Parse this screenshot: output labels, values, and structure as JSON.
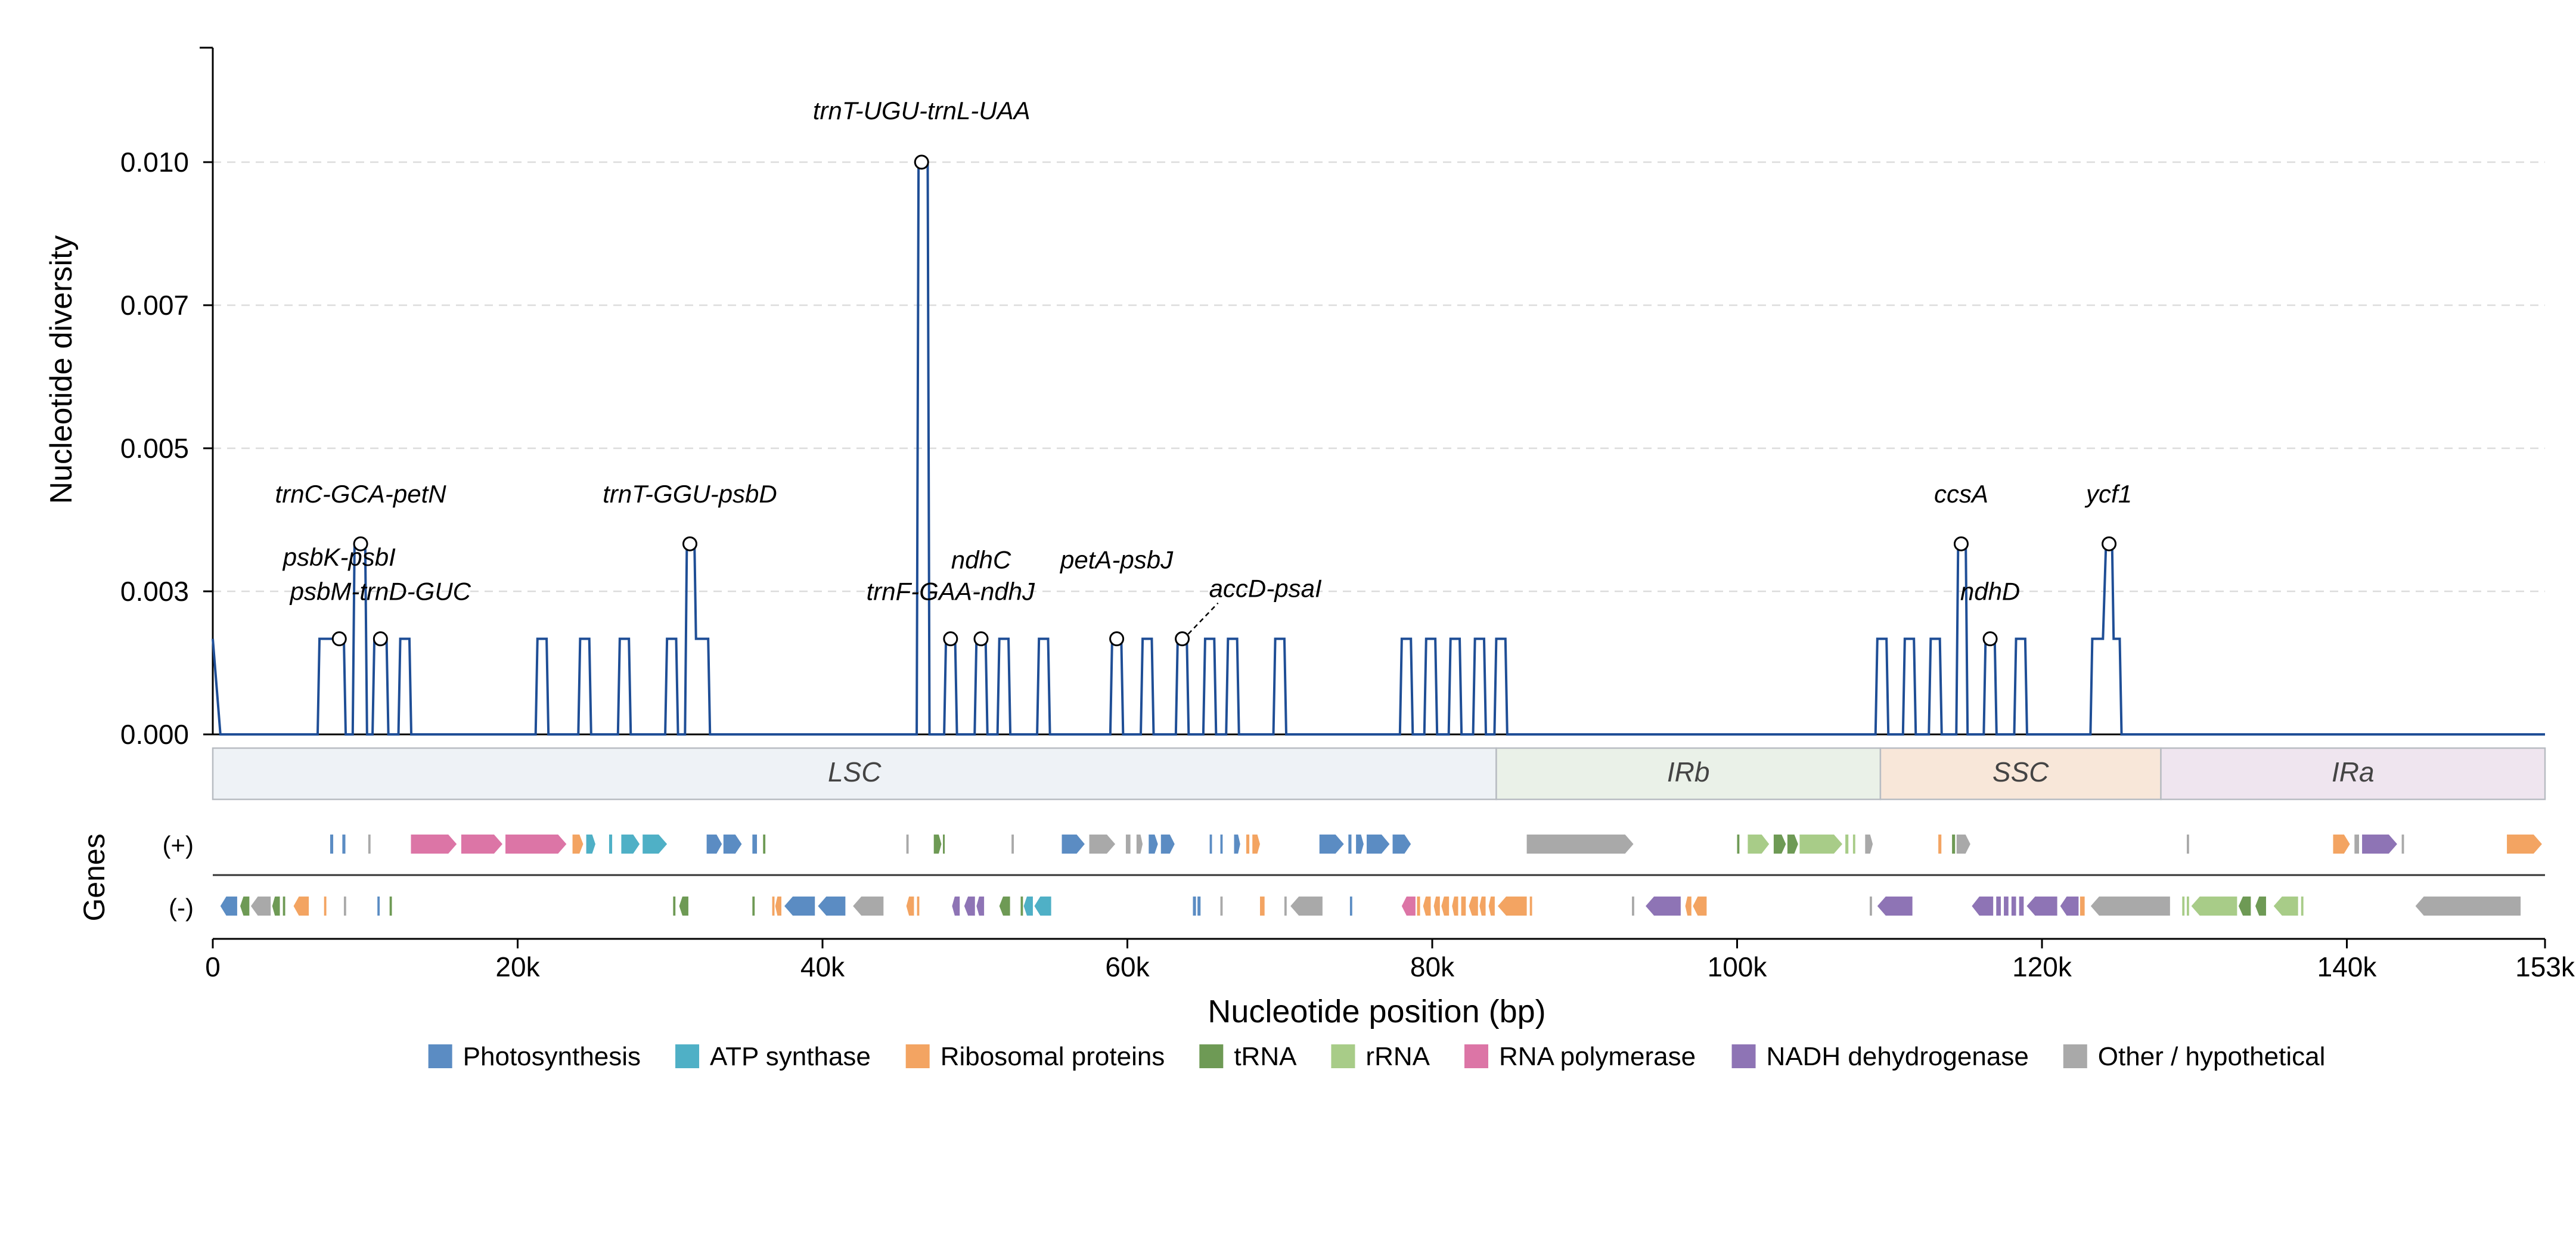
{
  "chart_data": {
    "type": "line",
    "ylabel": "Nucleotide diversity",
    "xlabel": "Nucleotide position (bp)",
    "ylim": [
      0,
      0.012
    ],
    "xlim": [
      0,
      153000
    ],
    "yticks": [
      0.0,
      0.0025,
      0.005,
      0.0075,
      0.01
    ],
    "ytick_labels": [
      "0.000",
      "0.003",
      "0.005",
      "0.007",
      "0.010"
    ],
    "xticks": [
      0,
      20000,
      40000,
      60000,
      80000,
      100000,
      120000,
      140000,
      153000
    ],
    "xtick_labels": [
      "0",
      "20k",
      "40k",
      "60k",
      "80k",
      "100k",
      "120k",
      "140k",
      "153k"
    ],
    "grid": "horizontal dashed",
    "line_color": "#1f4e96",
    "series": [
      {
        "peaks": [
          {
            "start": 200,
            "end": 500,
            "value": 0.00167
          },
          {
            "start": 7000,
            "end": 7700,
            "value": 0.00167
          },
          {
            "start": 7900,
            "end": 8600,
            "value": 0.00167
          },
          {
            "start": 9300,
            "end": 10000,
            "value": 0.00333
          },
          {
            "start": 10600,
            "end": 11400,
            "value": 0.00167
          },
          {
            "start": 12300,
            "end": 12900,
            "value": 0.00167
          },
          {
            "start": 21300,
            "end": 21900,
            "value": 0.00167
          },
          {
            "start": 24100,
            "end": 24700,
            "value": 0.00167
          },
          {
            "start": 26700,
            "end": 27300,
            "value": 0.00167
          },
          {
            "start": 29800,
            "end": 30400,
            "value": 0.00167
          },
          {
            "start": 31100,
            "end": 31600,
            "value": 0.00333
          },
          {
            "start": 31700,
            "end": 32500,
            "value": 0.00167
          },
          {
            "start": 46300,
            "end": 46900,
            "value": 0.01
          },
          {
            "start": 48100,
            "end": 48700,
            "value": 0.00167
          },
          {
            "start": 50100,
            "end": 50700,
            "value": 0.00167
          },
          {
            "start": 51600,
            "end": 52200,
            "value": 0.00167
          },
          {
            "start": 54200,
            "end": 54800,
            "value": 0.00167
          },
          {
            "start": 59000,
            "end": 59600,
            "value": 0.00167
          },
          {
            "start": 61000,
            "end": 61600,
            "value": 0.00167
          },
          {
            "start": 63300,
            "end": 63900,
            "value": 0.00167
          },
          {
            "start": 65100,
            "end": 65700,
            "value": 0.00167
          },
          {
            "start": 66600,
            "end": 67200,
            "value": 0.00167
          },
          {
            "start": 69700,
            "end": 70300,
            "value": 0.00167
          },
          {
            "start": 78000,
            "end": 78600,
            "value": 0.00167
          },
          {
            "start": 79600,
            "end": 80200,
            "value": 0.00167
          },
          {
            "start": 81200,
            "end": 81800,
            "value": 0.00167
          },
          {
            "start": 82800,
            "end": 83400,
            "value": 0.00167
          },
          {
            "start": 84200,
            "end": 84800,
            "value": 0.00167
          },
          {
            "start": 109200,
            "end": 109800,
            "value": 0.00167
          },
          {
            "start": 111000,
            "end": 111600,
            "value": 0.00167
          },
          {
            "start": 112700,
            "end": 113300,
            "value": 0.00167
          },
          {
            "start": 114500,
            "end": 115000,
            "value": 0.00333
          },
          {
            "start": 116300,
            "end": 116900,
            "value": 0.00167
          },
          {
            "start": 118300,
            "end": 118900,
            "value": 0.00167
          },
          {
            "start": 123300,
            "end": 124000,
            "value": 0.00167
          },
          {
            "start": 124200,
            "end": 124600,
            "value": 0.00333
          },
          {
            "start": 124700,
            "end": 125100,
            "value": 0.00167
          }
        ]
      }
    ],
    "annotations": [
      {
        "label": "trnC-GCA-petN",
        "x": 9700,
        "y": 0.00333,
        "text_y": 0.00405
      },
      {
        "label": "psbK-psbI",
        "x": 8300,
        "y": 0.00167,
        "text_y": 0.00295
      },
      {
        "label": "psbM-trnD-GUC",
        "x": 11000,
        "y": 0.00167,
        "text_y": 0.00235
      },
      {
        "label": "trnT-GGU-psbD",
        "x": 31300,
        "y": 0.00333,
        "text_y": 0.00405
      },
      {
        "label": "trnT-UGU-trnL-UAA",
        "x": 46500,
        "y": 0.01,
        "text_y": 0.01075
      },
      {
        "label": "ndhC",
        "x": 50400,
        "y": 0.00167,
        "text_y": 0.0029
      },
      {
        "label": "trnF-GAA-ndhJ",
        "x": 48400,
        "y": 0.00167,
        "text_y": 0.00235
      },
      {
        "label": "petA-psbJ",
        "x": 59300,
        "y": 0.00167,
        "text_y": 0.0029
      },
      {
        "label": "accD-psaI",
        "x": 63600,
        "y": 0.00167,
        "text_y": 0.0024
      },
      {
        "label": "ccsA",
        "x": 114700,
        "y": 0.00333,
        "text_y": 0.00405
      },
      {
        "label": "ndhD",
        "x": 116600,
        "y": 0.00167,
        "text_y": 0.00235
      },
      {
        "label": "ycf1",
        "x": 124400,
        "y": 0.00333,
        "text_y": 0.00405
      }
    ],
    "regions": [
      {
        "label": "LSC",
        "start": 0,
        "end": 84200,
        "color": "#eef2f6"
      },
      {
        "label": "IRb",
        "start": 84200,
        "end": 109400,
        "color": "#eaf1e8"
      },
      {
        "label": "SSC",
        "start": 109400,
        "end": 127800,
        "color": "#f8e7d9"
      },
      {
        "label": "IRa",
        "start": 127800,
        "end": 153000,
        "color": "#efe5ef"
      }
    ],
    "genes_label": "Genes",
    "strand_labels": {
      "plus": "(+)",
      "minus": "(-)"
    },
    "categories": {
      "photo": {
        "name": "Photosynthesis",
        "color": "#5b8cc3"
      },
      "atp": {
        "name": "ATP synthase",
        "color": "#4fb0c6"
      },
      "ribo": {
        "name": "Ribosomal proteins",
        "color": "#f3a462"
      },
      "trna": {
        "name": "tRNA",
        "color": "#6e9a55"
      },
      "rrna": {
        "name": "rRNA",
        "color": "#a8cc88"
      },
      "rnap": {
        "name": "RNA polymerase",
        "color": "#dc75a6"
      },
      "ndh": {
        "name": "NADH dehydrogenase",
        "color": "#8e74b5"
      },
      "other": {
        "name": "Other / hypothetical",
        "color": "#a9a9a9"
      }
    },
    "legend_order": [
      "photo",
      "atp",
      "ribo",
      "trna",
      "rrna",
      "rnap",
      "ndh",
      "other"
    ],
    "genes_plus": [
      [
        "photo",
        7700,
        7900
      ],
      [
        "photo",
        8500,
        8700
      ],
      [
        "other",
        10200,
        10350
      ],
      [
        "rnap",
        13000,
        16000
      ],
      [
        "rnap",
        16300,
        19000
      ],
      [
        "rnap",
        19200,
        23200
      ],
      [
        "ribo",
        23600,
        24300
      ],
      [
        "atp",
        24500,
        25100
      ],
      [
        "atp",
        26000,
        26200
      ],
      [
        "atp",
        26800,
        28000
      ],
      [
        "atp",
        28200,
        29800
      ],
      [
        "photo",
        32400,
        33400
      ],
      [
        "photo",
        33500,
        34700
      ],
      [
        "photo",
        35400,
        35700
      ],
      [
        "trna",
        36100,
        36250
      ],
      [
        "other",
        45500,
        45650
      ],
      [
        "trna",
        47300,
        47800
      ],
      [
        "trna",
        47900,
        48000
      ],
      [
        "other",
        52400,
        52550
      ],
      [
        "photo",
        55700,
        57200
      ],
      [
        "other",
        57500,
        59200
      ],
      [
        "other",
        59900,
        60200
      ],
      [
        "other",
        60600,
        61000
      ],
      [
        "photo",
        61400,
        62000
      ],
      [
        "photo",
        62200,
        63100
      ],
      [
        "photo",
        65400,
        65550
      ],
      [
        "photo",
        66100,
        66250
      ],
      [
        "photo",
        67000,
        67400
      ],
      [
        "ribo",
        67800,
        68000
      ],
      [
        "ribo",
        68200,
        68700
      ],
      [
        "photo",
        72600,
        74200
      ],
      [
        "photo",
        74500,
        74700
      ],
      [
        "photo",
        75000,
        75500
      ],
      [
        "photo",
        75700,
        77200
      ],
      [
        "photo",
        77400,
        78600
      ],
      [
        "other",
        86200,
        93200
      ],
      [
        "trna",
        100000,
        100150
      ],
      [
        "rrna",
        100700,
        102100
      ],
      [
        "trna",
        102400,
        103200
      ],
      [
        "trna",
        103300,
        104000
      ],
      [
        "rrna",
        104100,
        106900
      ],
      [
        "rrna",
        107100,
        107300
      ],
      [
        "rrna",
        107600,
        107750
      ],
      [
        "other",
        108400,
        108900
      ],
      [
        "ribo",
        113200,
        113400
      ],
      [
        "trna",
        114100,
        114300
      ],
      [
        "other",
        114400,
        115300
      ],
      [
        "other",
        129500,
        129650
      ],
      [
        "ribo",
        139100,
        140200
      ],
      [
        "other",
        140500,
        140800
      ],
      [
        "ndh",
        141000,
        143300
      ],
      [
        "other",
        143600,
        143750
      ],
      [
        "ribo",
        150500,
        152800
      ],
      [
        "ribo",
        151000,
        151200
      ]
    ],
    "genes_minus": [
      [
        "photo",
        500,
        1600
      ],
      [
        "trna",
        1800,
        2400
      ],
      [
        "other",
        2500,
        3800
      ],
      [
        "trna",
        3900,
        4400
      ],
      [
        "trna",
        4600,
        4750
      ],
      [
        "ribo",
        5300,
        6300
      ],
      [
        "ribo",
        7300,
        7450
      ],
      [
        "other",
        8600,
        8750
      ],
      [
        "photo",
        10800,
        10950
      ],
      [
        "trna",
        11600,
        11750
      ],
      [
        "trna",
        30200,
        30350
      ],
      [
        "trna",
        30600,
        31200
      ],
      [
        "trna",
        35400,
        35550
      ],
      [
        "ribo",
        36700,
        36850
      ],
      [
        "ribo",
        36900,
        37300
      ],
      [
        "photo",
        37500,
        39500
      ],
      [
        "photo",
        39700,
        41500
      ],
      [
        "other",
        42000,
        44000
      ],
      [
        "ribo",
        45500,
        46000
      ],
      [
        "ribo",
        46200,
        46350
      ],
      [
        "ndh",
        48500,
        49000
      ],
      [
        "ndh",
        49300,
        50000
      ],
      [
        "ndh",
        50100,
        50600
      ],
      [
        "trna",
        51600,
        52300
      ],
      [
        "trna",
        53000,
        53150
      ],
      [
        "atp",
        53200,
        53800
      ],
      [
        "atp",
        53900,
        55000
      ],
      [
        "photo",
        64300,
        64500
      ],
      [
        "photo",
        64600,
        64800
      ],
      [
        "other",
        66100,
        66250
      ],
      [
        "ribo",
        68700,
        69000
      ],
      [
        "other",
        70300,
        70450
      ],
      [
        "other",
        70700,
        72800
      ],
      [
        "photo",
        74600,
        74750
      ],
      [
        "rnap",
        78000,
        78900
      ],
      [
        "ribo",
        79000,
        79200
      ],
      [
        "ribo",
        79400,
        79900
      ],
      [
        "ribo",
        80100,
        80500
      ],
      [
        "ribo",
        80600,
        81100
      ],
      [
        "ribo",
        81300,
        81700
      ],
      [
        "ribo",
        81900,
        82200
      ],
      [
        "ribo",
        82400,
        83000
      ],
      [
        "ribo",
        83100,
        83500
      ],
      [
        "ribo",
        83700,
        84100
      ],
      [
        "ribo",
        84300,
        86200
      ],
      [
        "ribo",
        86400,
        86550
      ],
      [
        "other",
        93100,
        93250
      ],
      [
        "ndh",
        94000,
        96300
      ],
      [
        "ribo",
        96600,
        97000
      ],
      [
        "ribo",
        97100,
        98000
      ],
      [
        "other",
        108700,
        108850
      ],
      [
        "ndh",
        109200,
        111500
      ],
      [
        "ndh",
        115400,
        116800
      ],
      [
        "ndh",
        117000,
        117300
      ],
      [
        "ndh",
        117500,
        117800
      ],
      [
        "ndh",
        118000,
        118300
      ],
      [
        "ndh",
        118500,
        118800
      ],
      [
        "ndh",
        119000,
        121000
      ],
      [
        "ndh",
        121200,
        122400
      ],
      [
        "ribo",
        122500,
        122800
      ],
      [
        "other",
        123200,
        128400
      ],
      [
        "rrna",
        129200,
        129350
      ],
      [
        "rrna",
        129500,
        129650
      ],
      [
        "rrna",
        129800,
        132800
      ],
      [
        "trna",
        132900,
        133700
      ],
      [
        "trna",
        134000,
        134700
      ],
      [
        "rrna",
        135200,
        136800
      ],
      [
        "rrna",
        137000,
        137150
      ],
      [
        "other",
        144500,
        151400
      ]
    ]
  }
}
